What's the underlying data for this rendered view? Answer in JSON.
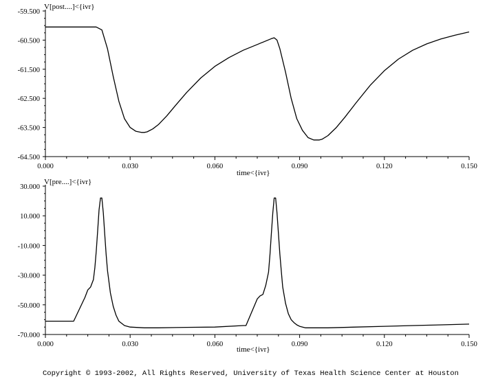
{
  "chart_data": [
    {
      "type": "line",
      "title": "",
      "ylabel": "V[post....]<{ivr}",
      "xlabel": "time<{ivr}",
      "xlim": [
        0.0,
        0.15
      ],
      "ylim": [
        -64.5,
        -59.5
      ],
      "xticks": [
        0.0,
        0.03,
        0.06,
        0.09,
        0.12,
        0.15
      ],
      "xtick_labels": [
        "0.000",
        "0.030",
        "0.060",
        "0.090",
        "0.120",
        "0.150"
      ],
      "yticks": [
        -59.5,
        -60.5,
        -61.5,
        -62.5,
        -63.5,
        -64.5
      ],
      "ytick_labels": [
        "-59.500",
        "-60.500",
        "-61.500",
        "-62.500",
        "-63.500",
        "-64.500"
      ],
      "grid": false,
      "series": [
        {
          "x": [
            0.0,
            0.018,
            0.02,
            0.022,
            0.024,
            0.026,
            0.028,
            0.03,
            0.032,
            0.034,
            0.035,
            0.036,
            0.038,
            0.04,
            0.043,
            0.046,
            0.05,
            0.055,
            0.06,
            0.065,
            0.07,
            0.075,
            0.08,
            0.081,
            0.082,
            0.083,
            0.085,
            0.087,
            0.089,
            0.091,
            0.093,
            0.095,
            0.097,
            0.098,
            0.1,
            0.103,
            0.106,
            0.11,
            0.115,
            0.12,
            0.125,
            0.13,
            0.135,
            0.14,
            0.145,
            0.15
          ],
          "y": [
            -60.05,
            -60.05,
            -60.15,
            -60.8,
            -61.75,
            -62.6,
            -63.2,
            -63.5,
            -63.63,
            -63.67,
            -63.67,
            -63.65,
            -63.55,
            -63.4,
            -63.1,
            -62.75,
            -62.3,
            -61.8,
            -61.4,
            -61.1,
            -60.85,
            -60.65,
            -60.45,
            -60.42,
            -60.5,
            -60.8,
            -61.6,
            -62.5,
            -63.2,
            -63.6,
            -63.85,
            -63.93,
            -63.93,
            -63.9,
            -63.78,
            -63.5,
            -63.15,
            -62.65,
            -62.05,
            -61.55,
            -61.15,
            -60.85,
            -60.63,
            -60.46,
            -60.33,
            -60.22
          ]
        }
      ]
    },
    {
      "type": "line",
      "title": "",
      "ylabel": "V[pre....]<{ivr}",
      "xlabel": "time<{ivr}",
      "xlim": [
        0.0,
        0.15
      ],
      "ylim": [
        -70.0,
        30.0
      ],
      "xticks": [
        0.0,
        0.03,
        0.06,
        0.09,
        0.12,
        0.15
      ],
      "xtick_labels": [
        "0.000",
        "0.030",
        "0.060",
        "0.090",
        "0.120",
        "0.150"
      ],
      "yticks": [
        30.0,
        10.0,
        -10.0,
        -30.0,
        -50.0,
        -70.0
      ],
      "ytick_labels": [
        "30.000",
        "10.000",
        "-10.000",
        "-30.000",
        "-50.000",
        "-70.000"
      ],
      "grid": false,
      "series": [
        {
          "x": [
            0.0,
            0.01,
            0.014,
            0.015,
            0.016,
            0.017,
            0.0175,
            0.018,
            0.0185,
            0.019,
            0.0195,
            0.02,
            0.0205,
            0.021,
            0.0215,
            0.022,
            0.023,
            0.024,
            0.025,
            0.026,
            0.028,
            0.03,
            0.035,
            0.04,
            0.05,
            0.06,
            0.07,
            0.071,
            0.075,
            0.076,
            0.077,
            0.078,
            0.079,
            0.0795,
            0.08,
            0.0805,
            0.081,
            0.0815,
            0.082,
            0.0825,
            0.083,
            0.0835,
            0.084,
            0.085,
            0.086,
            0.087,
            0.088,
            0.089,
            0.09,
            0.092,
            0.095,
            0.1,
            0.11,
            0.12,
            0.13,
            0.14,
            0.15
          ],
          "y": [
            -61,
            -61,
            -45,
            -40,
            -38,
            -33,
            -25,
            -14,
            0,
            14,
            22,
            22,
            12,
            -2,
            -16,
            -27,
            -42,
            -51,
            -57,
            -61,
            -64,
            -65,
            -65.5,
            -65.5,
            -65.2,
            -65,
            -64,
            -64,
            -46,
            -44,
            -43,
            -37,
            -28,
            -16,
            -2,
            12,
            22,
            22,
            12,
            -2,
            -16,
            -27,
            -38,
            -49,
            -56,
            -60,
            -62,
            -63.5,
            -64.5,
            -65.5,
            -65.5,
            -65.5,
            -65,
            -64.5,
            -64,
            -63.5,
            -63
          ]
        }
      ]
    }
  ],
  "footer": {
    "copyright": "Copyright © 1993-2002, All Rights Reserved, University of Texas Health Science Center at Houston"
  }
}
